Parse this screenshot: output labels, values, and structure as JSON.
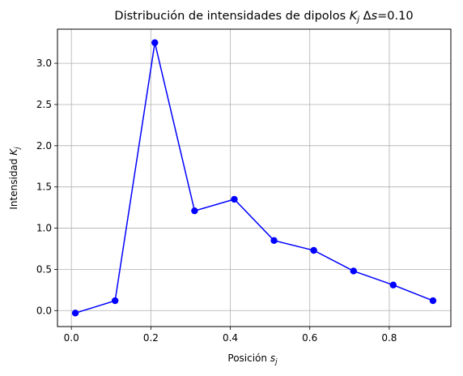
{
  "chart_data": {
    "type": "line",
    "title_main": "Distribución de intensidades de dipolos ",
    "title_var": "K",
    "title_sub": "j",
    "title_delta": " Δ",
    "title_s": "s",
    "title_tail": "=0.10",
    "xlabel_main": "Posición ",
    "xlabel_var": "s",
    "xlabel_sub": "j",
    "ylabel_main": "Intensidad ",
    "ylabel_var": "K",
    "ylabel_sub": "j",
    "series": [
      {
        "color": "#0000ff",
        "marker": "circle",
        "x": [
          0.01,
          0.11,
          0.21,
          0.31,
          0.41,
          0.51,
          0.61,
          0.71,
          0.81,
          0.91
        ],
        "y": [
          -0.03,
          0.12,
          3.25,
          1.21,
          1.35,
          0.85,
          0.73,
          0.48,
          0.31,
          0.12
        ]
      }
    ],
    "xlim": [
      -0.035,
      0.955
    ],
    "ylim": [
      -0.194,
      3.414
    ],
    "xticks": [
      0.0,
      0.2,
      0.4,
      0.6,
      0.8
    ],
    "xtick_labels": [
      "0.0",
      "0.2",
      "0.4",
      "0.6",
      "0.8"
    ],
    "yticks": [
      0.0,
      0.5,
      1.0,
      1.5,
      2.0,
      2.5,
      3.0
    ],
    "ytick_labels": [
      "0.0",
      "0.5",
      "1.0",
      "1.5",
      "2.0",
      "2.5",
      "3.0"
    ],
    "grid": true
  }
}
